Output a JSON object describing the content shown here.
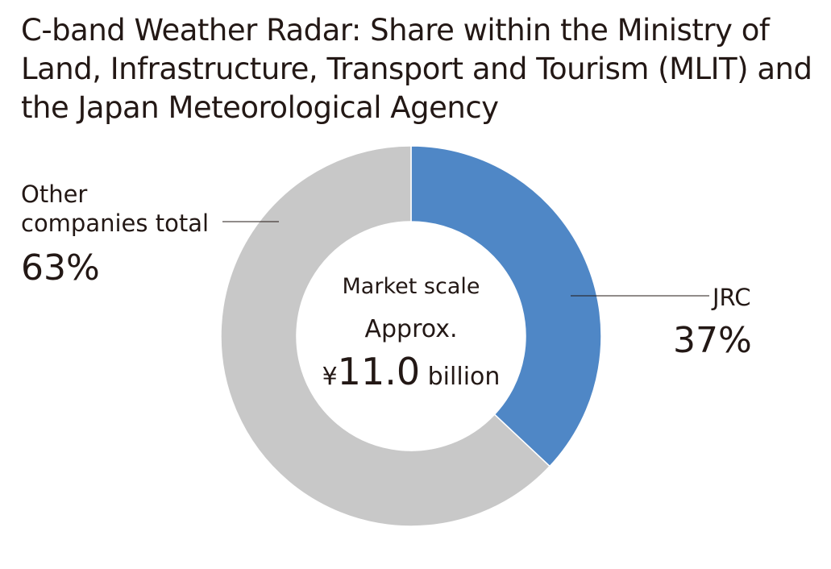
{
  "chart_data": {
    "type": "pie",
    "title": "C-band Weather Radar: Share within the Ministry of Land, Infrastructure, Transport and Tourism (MLIT) and the Japan Meteorological Agency",
    "slices": [
      {
        "label": "JRC",
        "value": 37,
        "value_label": "37%",
        "color": "#4f87c6"
      },
      {
        "label": "Other companies total",
        "label_lines": [
          "Other",
          "companies total"
        ],
        "value": 63,
        "value_label": "63%",
        "color": "#c8c8c8"
      }
    ],
    "donut": true,
    "center_text": {
      "line1": "Market scale",
      "line2": "Approx.",
      "yen": "¥",
      "amount": "11.0",
      "unit": "billion"
    }
  }
}
